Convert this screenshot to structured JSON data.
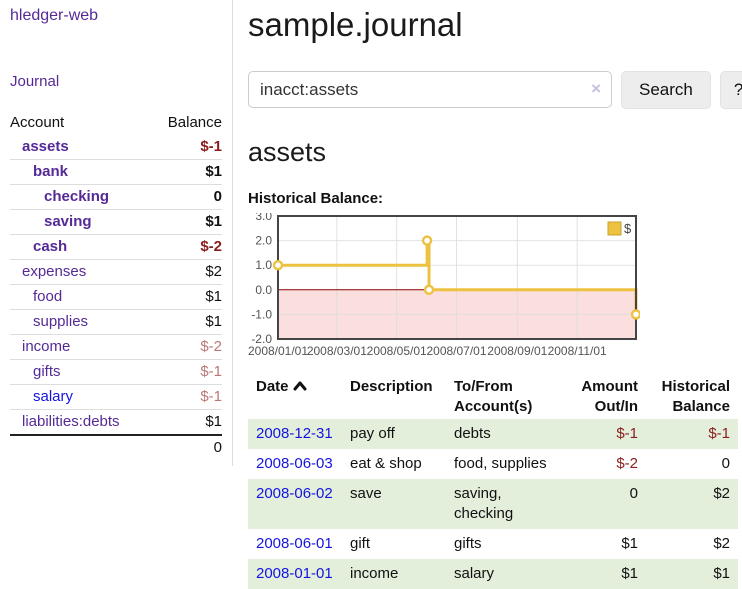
{
  "app": {
    "title": "hledger-web"
  },
  "nav": {
    "journal_label": "Journal"
  },
  "colors": {
    "link_purple": "#552a97",
    "link_blue": "#1414e0",
    "negative_strong": "#8b1d1d",
    "negative_soft": "#bd7676",
    "row_stripe_green": "#e3eedb",
    "divider_gray": "#dddddd",
    "button_gray": "#ededed"
  },
  "sidebar": {
    "col_account": "Account",
    "col_balance": "Balance",
    "accounts": [
      {
        "name": "assets",
        "indent": 1,
        "balance": "$-1",
        "bold": true,
        "neg": "strong"
      },
      {
        "name": "bank",
        "indent": 2,
        "balance": "$1",
        "bold": true,
        "neg": "none"
      },
      {
        "name": "checking",
        "indent": 3,
        "balance": "0",
        "bold": true,
        "neg": "none"
      },
      {
        "name": "saving",
        "indent": 3,
        "balance": "$1",
        "bold": true,
        "neg": "none"
      },
      {
        "name": "cash",
        "indent": 2,
        "balance": "$-2",
        "bold": true,
        "neg": "strong"
      },
      {
        "name": "expenses",
        "indent": 1,
        "balance": "$2",
        "bold": false,
        "neg": "none"
      },
      {
        "name": "food",
        "indent": 2,
        "balance": "$1",
        "bold": false,
        "neg": "none"
      },
      {
        "name": "supplies",
        "indent": 2,
        "balance": "$1",
        "bold": false,
        "neg": "none"
      },
      {
        "name": "income",
        "indent": 1,
        "balance": "$-2",
        "bold": false,
        "neg": "soft"
      },
      {
        "name": "gifts",
        "indent": 2,
        "balance": "$-1",
        "bold": false,
        "neg": "soft"
      },
      {
        "name": "salary",
        "indent": 2,
        "balance": "$-1",
        "bold": false,
        "neg": "soft",
        "link": "blue"
      },
      {
        "name": "liabilities:debts",
        "indent": 1,
        "balance": "$1",
        "bold": false,
        "neg": "none"
      }
    ],
    "total": "0"
  },
  "header": {
    "title": "sample.journal"
  },
  "search": {
    "value": "inacct:assets",
    "clear_icon": "×",
    "button_label": "Search",
    "help_label": "?"
  },
  "account_page": {
    "heading": "assets",
    "chart_label": "Historical Balance:"
  },
  "chart_data": {
    "type": "step-line",
    "title": "Historical Balance",
    "x_range": [
      "2008-01-01",
      "2008-12-31"
    ],
    "ylim": [
      -2,
      3
    ],
    "y_tick_labels": [
      "3.0",
      "2.0",
      "1.0",
      "0.0",
      "-1.0",
      "-2.0"
    ],
    "x_ticks": [
      "2008/01/01",
      "2008/03/01",
      "2008/05/01",
      "2008/07/01",
      "2008/09/01",
      "2008/11/01"
    ],
    "grid": true,
    "legend": {
      "label": "$",
      "position": "top-right"
    },
    "series": [
      {
        "name": "$",
        "color": "#edc240",
        "marker_fill": "#ffffff",
        "points": [
          {
            "x": "2008-01-01",
            "y": 1
          },
          {
            "x": "2008-06-01",
            "y": 2
          },
          {
            "x": "2008-06-03",
            "y": 0
          },
          {
            "x": "2008-12-31",
            "y": -1
          }
        ]
      }
    ],
    "negative_region_color": "#fbdede",
    "zero_line_color": "#8b0000",
    "plot_border_color": "#444444",
    "gridline_color": "#dcdcdc",
    "tick_label_color": "#545454"
  },
  "register": {
    "headers": [
      {
        "lines": [
          "Date"
        ],
        "sort": "asc",
        "align": "left"
      },
      {
        "lines": [
          "Description"
        ],
        "align": "left"
      },
      {
        "lines": [
          "To/From",
          "Account(s)"
        ],
        "align": "left"
      },
      {
        "lines": [
          "Amount",
          "Out/In"
        ],
        "align": "right"
      },
      {
        "lines": [
          "Historical",
          "Balance"
        ],
        "align": "right"
      }
    ],
    "rows": [
      {
        "date": "2008-12-31",
        "description": "pay off",
        "accounts": "debts",
        "amount": "$-1",
        "amount_neg": true,
        "balance": "$-1",
        "balance_neg": true,
        "stripe": true
      },
      {
        "date": "2008-06-03",
        "description": "eat & shop",
        "accounts": "food, supplies",
        "amount": "$-2",
        "amount_neg": true,
        "balance": "0",
        "balance_neg": false,
        "stripe": false
      },
      {
        "date": "2008-06-02",
        "description": "save",
        "accounts": "saving, checking",
        "amount": "0",
        "amount_neg": false,
        "balance": "$2",
        "balance_neg": false,
        "stripe": true
      },
      {
        "date": "2008-06-01",
        "description": "gift",
        "accounts": "gifts",
        "amount": "$1",
        "amount_neg": false,
        "balance": "$2",
        "balance_neg": false,
        "stripe": false
      },
      {
        "date": "2008-01-01",
        "description": "income",
        "accounts": "salary",
        "amount": "$1",
        "amount_neg": false,
        "balance": "$1",
        "balance_neg": false,
        "stripe": true
      }
    ]
  }
}
